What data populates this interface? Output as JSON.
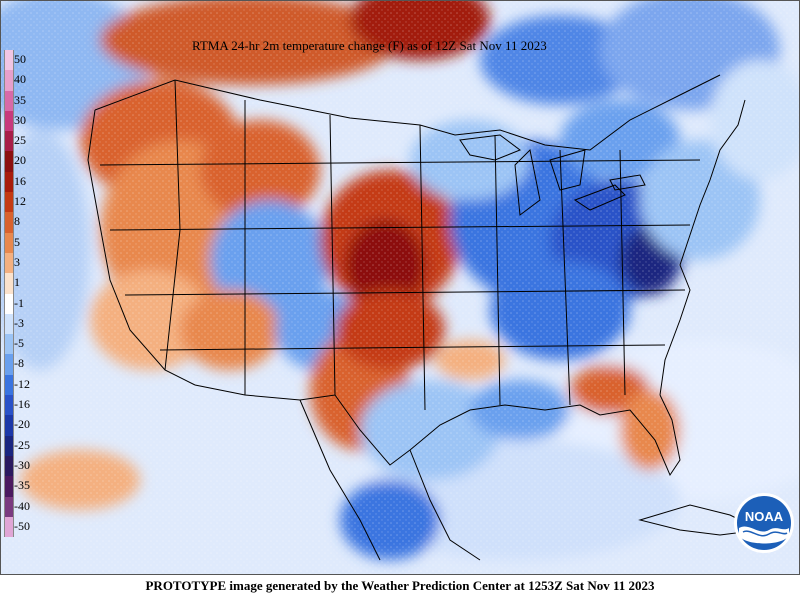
{
  "title": "RTMA 24-hr 2m temperature change (F) as of 12Z Sat Nov 11 2023",
  "footer": "PROTOTYPE image generated by the Weather Prediction Center at 1253Z Sat Nov 11 2023",
  "logo": {
    "text": "NOAA",
    "icon": "noaa-logo-icon"
  },
  "colorbar": [
    {
      "label": "50",
      "color": "#f2c6e4"
    },
    {
      "label": "40",
      "color": "#e8a0cc"
    },
    {
      "label": "35",
      "color": "#d86aa8"
    },
    {
      "label": "30",
      "color": "#c83a7c"
    },
    {
      "label": "25",
      "color": "#a81e48"
    },
    {
      "label": "20",
      "color": "#8c1010"
    },
    {
      "label": "16",
      "color": "#a81c0c"
    },
    {
      "label": "12",
      "color": "#c43a14"
    },
    {
      "label": "8",
      "color": "#d9622e"
    },
    {
      "label": "5",
      "color": "#e8884e"
    },
    {
      "label": "3",
      "color": "#f4b080"
    },
    {
      "label": "1",
      "color": "#fbe2cc"
    },
    {
      "label": "-1",
      "color": "#ffffff"
    },
    {
      "label": "-3",
      "color": "#cfe2fb"
    },
    {
      "label": "-5",
      "color": "#9cc4f5"
    },
    {
      "label": "-8",
      "color": "#6aa0ee"
    },
    {
      "label": "-12",
      "color": "#3a74e0"
    },
    {
      "label": "-16",
      "color": "#2a52c8"
    },
    {
      "label": "-20",
      "color": "#1c38a8"
    },
    {
      "label": "-25",
      "color": "#1a2680"
    },
    {
      "label": "-30",
      "color": "#2a1a60"
    },
    {
      "label": "-35",
      "color": "#4a1a60"
    },
    {
      "label": "-40",
      "color": "#7a3a80"
    },
    {
      "label": "-50",
      "color": "#e0a6d6"
    }
  ],
  "colors": {
    "ocean_base": "#dbe8fb",
    "border": "#000000"
  }
}
